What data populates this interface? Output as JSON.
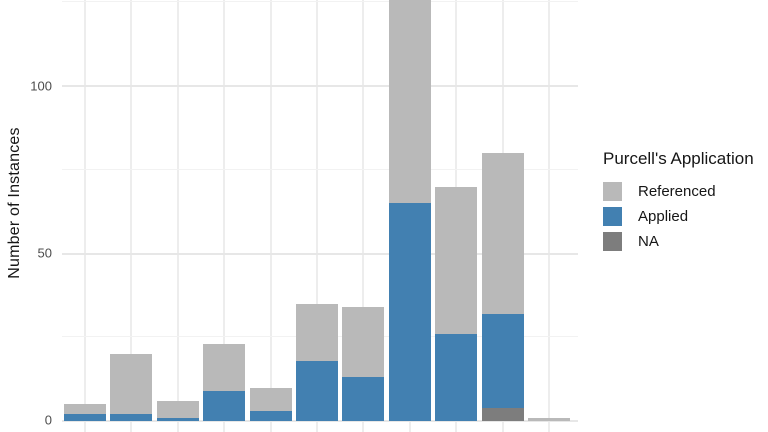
{
  "y_axis": {
    "title": "Number of Instances",
    "ticks": [
      "0",
      "50",
      "100"
    ]
  },
  "legend": {
    "title": "Purcell's Application",
    "items": [
      {
        "label": "Referenced",
        "color": "#b9b9b9"
      },
      {
        "label": "Applied",
        "color": "#4280b1"
      },
      {
        "label": "NA",
        "color": "#7d7d7d"
      }
    ]
  },
  "chart_data": {
    "type": "bar",
    "stacked": true,
    "orientation": "vertical",
    "title": "",
    "xlabel": "",
    "ylabel": "Number of Instances",
    "ylim": [
      0,
      130
    ],
    "y_major_ticks": [
      0,
      50,
      100
    ],
    "y_minor_gridlines": [
      25,
      75,
      125
    ],
    "grid": true,
    "legend_position": "right",
    "legend_title": "Purcell's Application",
    "categories": [
      "",
      "",
      "",
      "",
      "",
      "",
      "",
      "",
      "",
      "",
      ""
    ],
    "series": [
      {
        "name": "NA",
        "color": "#7d7d7d",
        "values": [
          0,
          0,
          0,
          0,
          0,
          0,
          0,
          0,
          0,
          4,
          0
        ]
      },
      {
        "name": "Applied",
        "color": "#4280b1",
        "values": [
          2,
          2,
          1,
          9,
          3,
          18,
          13,
          65,
          26,
          28,
          0
        ]
      },
      {
        "name": "Referenced",
        "color": "#b9b9b9",
        "values": [
          3,
          18,
          5,
          14,
          7,
          17,
          21,
          65,
          44,
          48,
          1
        ]
      }
    ],
    "notes": "Category (x-axis) labels are cut off below the bottom edge of the image; the 8th bar is clipped by the top edge of the image (its full height is not visible). Stacking order bottom-to-top: NA, Applied, Referenced."
  }
}
